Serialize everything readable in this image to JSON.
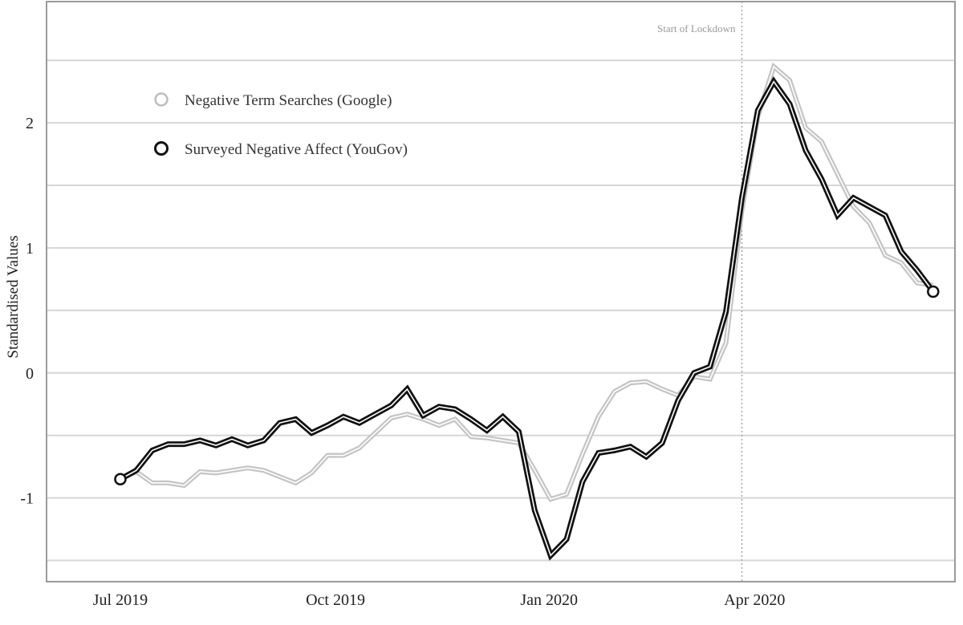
{
  "chart_data": {
    "type": "line",
    "title": "",
    "xlabel": "",
    "ylabel": "Standardised Values",
    "x_unit": "week index from start of July 2019",
    "x": [
      0,
      1,
      2,
      3,
      4,
      5,
      6,
      7,
      8,
      9,
      10,
      11,
      12,
      13,
      14,
      15,
      16,
      17,
      18,
      19,
      20,
      21,
      22,
      23,
      24,
      25,
      26,
      27,
      28,
      29,
      30,
      31,
      32,
      33,
      34,
      35,
      36,
      37,
      38,
      39,
      40,
      41,
      42,
      43,
      44,
      45,
      46,
      47,
      48,
      49,
      50,
      51
    ],
    "xlim": [
      -4.63,
      52.37
    ],
    "ylim": [
      -1.67,
      2.97
    ],
    "x_ticks": [
      {
        "value": 0,
        "label": "Jul 2019"
      },
      {
        "value": 13.5,
        "label": "Oct 2019"
      },
      {
        "value": 26.9,
        "label": "Jan 2020"
      },
      {
        "value": 39.8,
        "label": "Apr 2020"
      }
    ],
    "y_ticks": [
      {
        "value": 2,
        "label": "2"
      },
      {
        "value": 1,
        "label": "1"
      },
      {
        "value": 0,
        "label": "0"
      },
      {
        "value": -1,
        "label": "-1"
      }
    ],
    "y_gridlines": [
      2.5,
      2,
      1.5,
      1,
      0.5,
      0,
      -0.5,
      -1,
      -1.5
    ],
    "grid": true,
    "legend_position": "top-left",
    "annotation": {
      "label": "Start of Lockdown",
      "x": 39.0
    },
    "series": [
      {
        "name": "Negative Term Searches (Google)",
        "color": "#c4c4c4",
        "values": [
          -0.85,
          -0.79,
          -0.88,
          -0.88,
          -0.9,
          -0.79,
          -0.8,
          -0.78,
          -0.76,
          -0.78,
          -0.83,
          -0.88,
          -0.8,
          -0.66,
          -0.66,
          -0.6,
          -0.48,
          -0.36,
          -0.33,
          -0.37,
          -0.42,
          -0.37,
          -0.51,
          -0.52,
          -0.54,
          -0.56,
          -0.78,
          -1.01,
          -0.97,
          -0.65,
          -0.35,
          -0.15,
          -0.08,
          -0.07,
          -0.13,
          -0.18,
          -0.03,
          -0.05,
          0.24,
          1.3,
          2.05,
          2.45,
          2.34,
          1.96,
          1.85,
          1.59,
          1.33,
          1.2,
          0.94,
          0.88,
          0.72,
          0.7
        ]
      },
      {
        "name": "Surveyed Negative Affect (YouGov)",
        "color": "#111111",
        "values": [
          -0.85,
          -0.78,
          -0.62,
          -0.57,
          -0.57,
          -0.54,
          -0.58,
          -0.53,
          -0.58,
          -0.54,
          -0.4,
          -0.37,
          -0.48,
          -0.42,
          -0.35,
          -0.4,
          -0.33,
          -0.26,
          -0.13,
          -0.34,
          -0.27,
          -0.29,
          -0.37,
          -0.46,
          -0.35,
          -0.47,
          -1.1,
          -1.46,
          -1.33,
          -0.87,
          -0.64,
          -0.62,
          -0.59,
          -0.67,
          -0.56,
          -0.22,
          0.0,
          0.05,
          0.49,
          1.4,
          2.1,
          2.33,
          2.15,
          1.78,
          1.55,
          1.26,
          1.4,
          1.33,
          1.26,
          0.97,
          0.82,
          0.65
        ]
      }
    ]
  }
}
